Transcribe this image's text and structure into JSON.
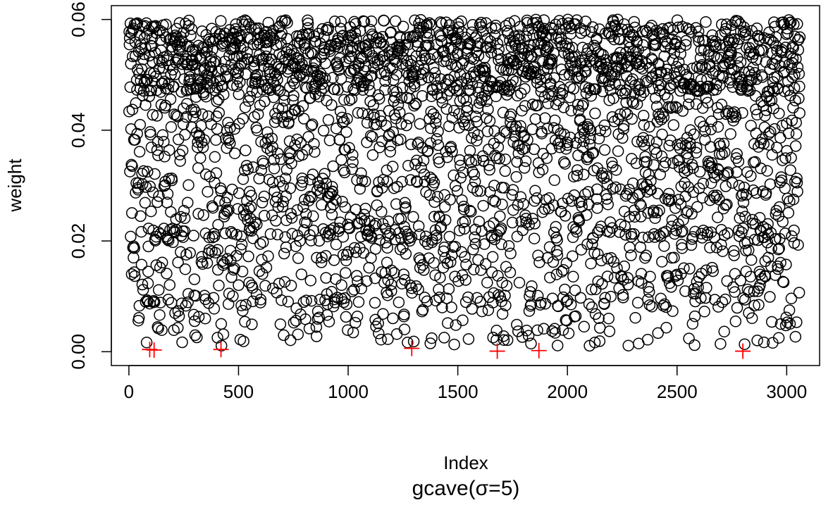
{
  "chart_data": {
    "type": "scatter",
    "title": "gcave(σ=5)",
    "xlabel": "Index",
    "ylabel": "weight",
    "xlim": [
      -80,
      3150
    ],
    "ylim": [
      -0.0025,
      0.0625
    ],
    "x_ticks": [
      0,
      500,
      1000,
      1500,
      2000,
      2500,
      3000
    ],
    "x_tick_labels": [
      "0",
      "500",
      "1000",
      "1500",
      "2000",
      "2500",
      "3000"
    ],
    "y_ticks": [
      0.0,
      0.02,
      0.04,
      0.06
    ],
    "y_tick_labels": [
      "0.00",
      "0.02",
      "0.04",
      "0.06"
    ],
    "grid": false,
    "series": [
      {
        "marker": "open-circle",
        "color": "#000000",
        "n_points": 3060,
        "generated": true,
        "x_range": [
          1,
          3060
        ],
        "y_range": [
          0.001,
          0.061
        ]
      },
      {
        "marker": "plus",
        "color": "#ff0000",
        "x": [
          95,
          115,
          420,
          1290,
          1680,
          1870,
          2800
        ],
        "y": [
          0.0004,
          0.0003,
          0.0004,
          0.0006,
          0.0001,
          0.0002,
          0.0001
        ]
      }
    ]
  }
}
